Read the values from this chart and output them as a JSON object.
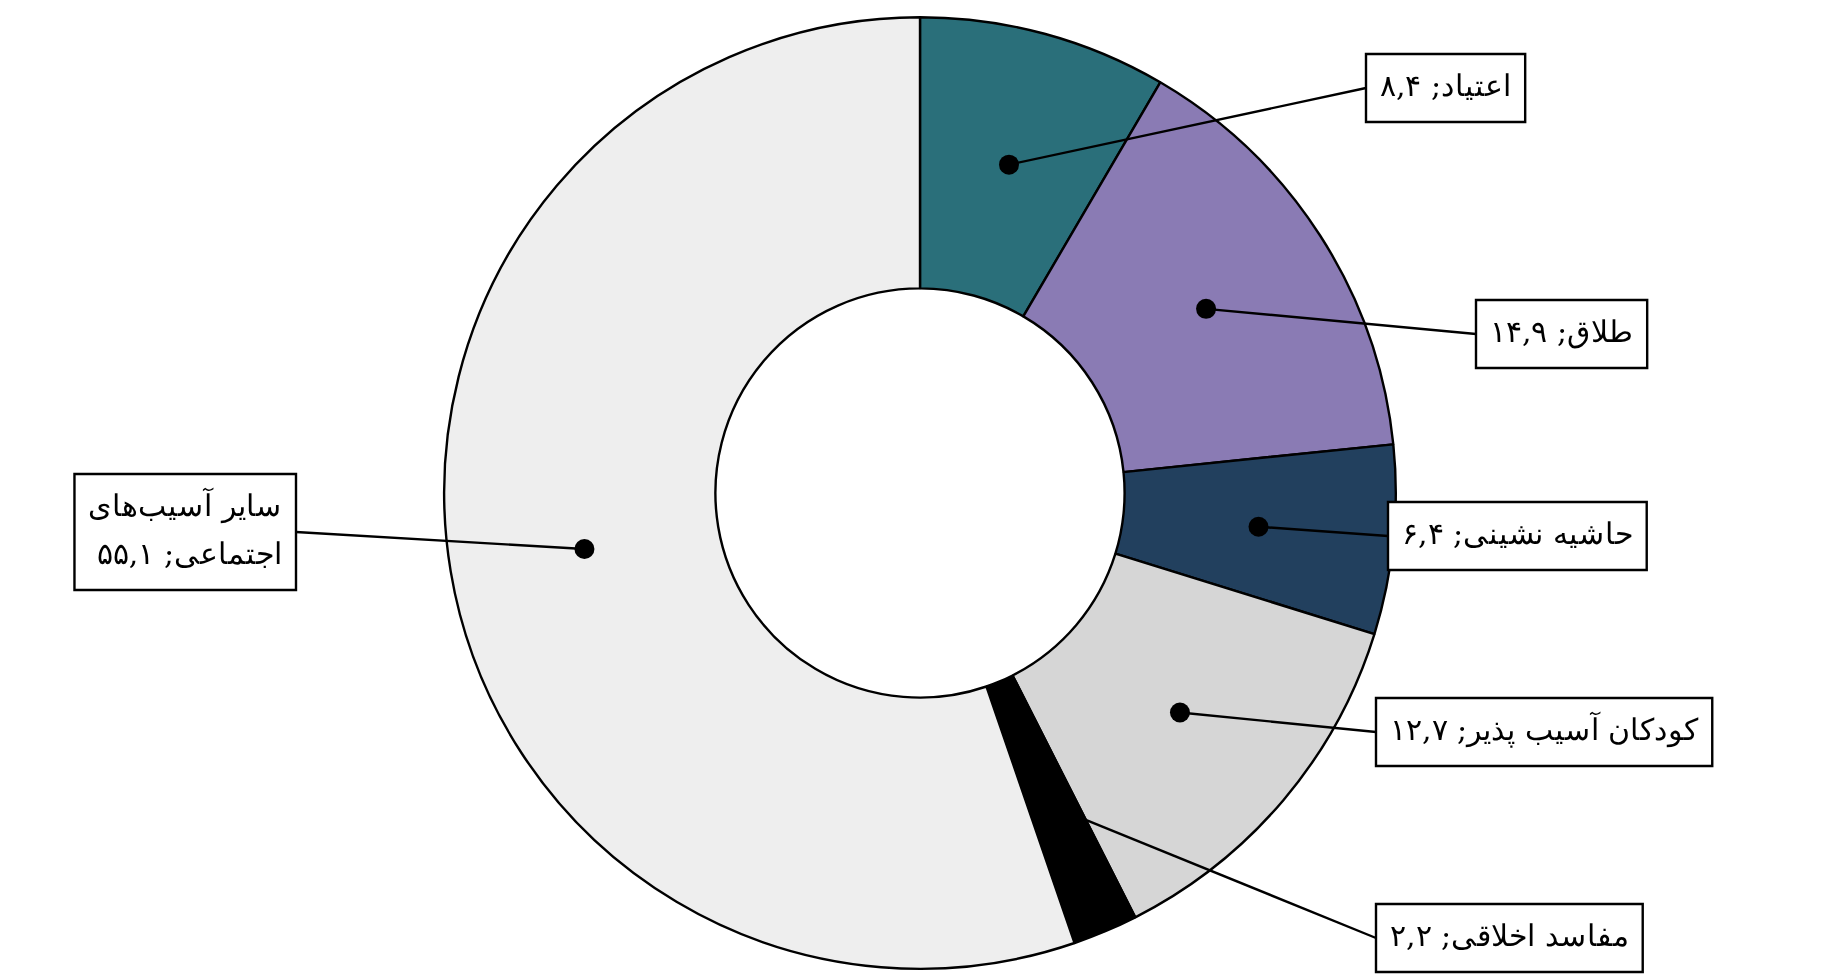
{
  "chart_data": {
    "type": "donut",
    "categories": [
      "اعتیاد",
      "طلاق",
      "حاشیه نشینی",
      "کودکان آسیب پذیر",
      "مفاسد اخلاقی",
      "سایر آسیب‌های اجتماعی"
    ],
    "values": [
      8.4,
      14.9,
      6.4,
      12.7,
      2.2,
      55.1
    ],
    "value_labels": [
      "۸,۴",
      "۱۴,۹",
      "۶,۴",
      "۱۲,۷",
      "۲,۲",
      "۵۵,۱"
    ],
    "colors": [
      "#2a6f7a",
      "#8a7bb4",
      "#22405e",
      "#d6d6d6",
      "#000000",
      "#eeeeee"
    ],
    "legend": false
  }
}
